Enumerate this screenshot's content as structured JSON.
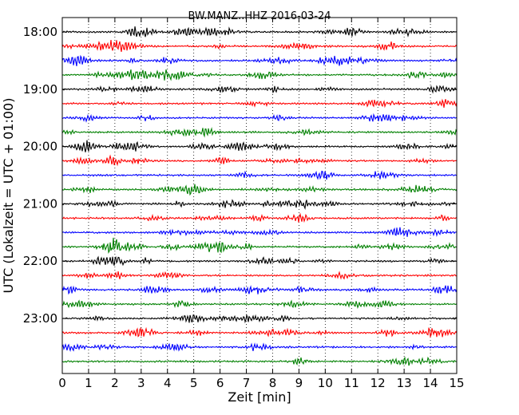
{
  "chart_data": {
    "type": "line",
    "title": "BW.MANZ..HHZ 2016-03-24",
    "xlabel": "Zeit  [min]",
    "ylabel": "UTC (Lokalzeit = UTC + 01:00)",
    "xlim": [
      0,
      15
    ],
    "x_ticks": [
      "0",
      "1",
      "2",
      "3",
      "4",
      "5",
      "6",
      "7",
      "8",
      "9",
      "10",
      "11",
      "12",
      "13",
      "14",
      "15"
    ],
    "y_ticks": [
      "18:00",
      "19:00",
      "20:00",
      "21:00",
      "22:00",
      "23:00"
    ],
    "grid": "vertical dotted at each minute",
    "trace_interval_min": 15,
    "trace_count": 24,
    "trace_colors": [
      "#000000",
      "#ff0000",
      "#0000ff",
      "#008000"
    ],
    "series": [
      {
        "start": "18:00"
      },
      {
        "start": "18:15"
      },
      {
        "start": "18:30"
      },
      {
        "start": "18:45"
      },
      {
        "start": "19:00"
      },
      {
        "start": "19:15"
      },
      {
        "start": "19:30"
      },
      {
        "start": "19:45"
      },
      {
        "start": "20:00"
      },
      {
        "start": "20:15"
      },
      {
        "start": "20:30"
      },
      {
        "start": "20:45"
      },
      {
        "start": "21:00"
      },
      {
        "start": "21:15"
      },
      {
        "start": "21:30"
      },
      {
        "start": "21:45"
      },
      {
        "start": "22:00"
      },
      {
        "start": "22:15"
      },
      {
        "start": "22:30"
      },
      {
        "start": "22:45"
      },
      {
        "start": "23:00"
      },
      {
        "start": "23:15"
      },
      {
        "start": "23:30"
      },
      {
        "start": "23:45"
      }
    ]
  }
}
